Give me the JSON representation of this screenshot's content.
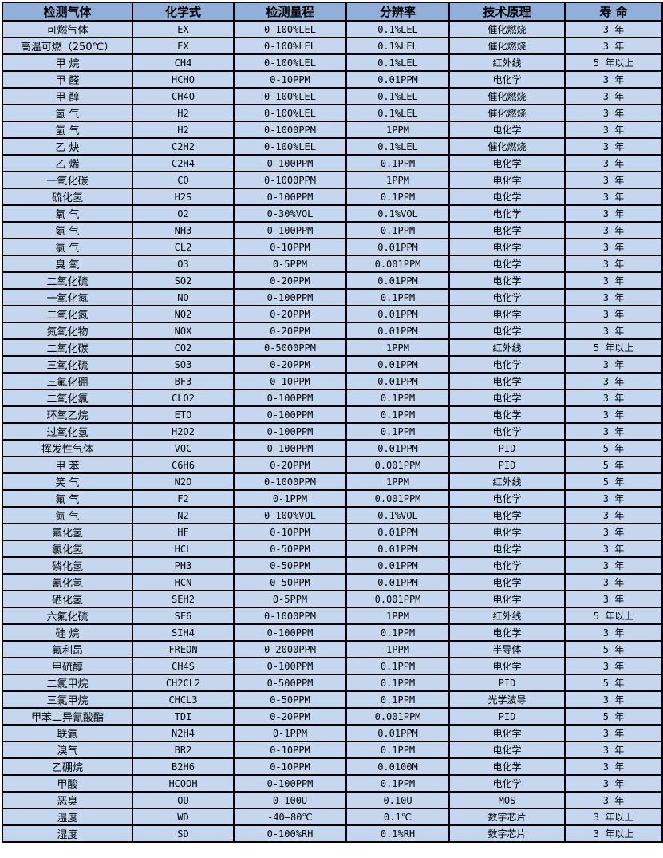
{
  "colors": {
    "header_bg": "#90AFD9",
    "row_bg": "#C4D7EE",
    "grid_border": "#000000",
    "text": "#000000",
    "page_bg": "#FFFFFF"
  },
  "table": {
    "columns": [
      {
        "label": "检测气体"
      },
      {
        "label": "化学式"
      },
      {
        "label": "检测量程"
      },
      {
        "label": "分辨率"
      },
      {
        "label": "技术原理"
      },
      {
        "label": "寿 命"
      }
    ],
    "rows": [
      [
        "可燃气体",
        "EX",
        "0-100%LEL",
        "0.1%LEL",
        "催化燃烧",
        "3 年"
      ],
      [
        "高温可燃（250℃）",
        "EX",
        "0-100%LEL",
        "0.1%LEL",
        "催化燃烧",
        "3 年"
      ],
      [
        "甲 烷",
        "CH4",
        "0-100%LEL",
        "0.1%LEL",
        "红外线",
        "5 年以上"
      ],
      [
        "甲 醛",
        "HCHO",
        "0-10PPM",
        "0.01PPM",
        "电化学",
        "3 年"
      ],
      [
        "甲 醇",
        "CH4O",
        "0-100%LEL",
        "0.1%LEL",
        "催化燃烧",
        "3 年"
      ],
      [
        "氢 气",
        "H2",
        "0-100%LEL",
        "0.1%LEL",
        "催化燃烧",
        "3 年"
      ],
      [
        "氢 气",
        "H2",
        "0-1000PPM",
        "1PPM",
        "电化学",
        "3 年"
      ],
      [
        "乙 炔",
        "C2H2",
        "0-100%LEL",
        "0.1%LEL",
        "催化燃烧",
        "3 年"
      ],
      [
        "乙 烯",
        "C2H4",
        "0-100PPM",
        "0.1PPM",
        "电化学",
        "3 年"
      ],
      [
        "一氧化碳",
        "CO",
        "0-1000PPM",
        "1PPM",
        "电化学",
        "3 年"
      ],
      [
        "硫化氢",
        "H2S",
        "0-100PPM",
        "0.1PPM",
        "电化学",
        "3 年"
      ],
      [
        "氧 气",
        "O2",
        "0-30%VOL",
        "0.1%VOL",
        "电化学",
        "3 年"
      ],
      [
        "氨 气",
        "NH3",
        "0-100PPM",
        "0.1PPM",
        "电化学",
        "3 年"
      ],
      [
        "氯 气",
        "CL2",
        "0-10PPM",
        "0.01PPM",
        "电化学",
        "3 年"
      ],
      [
        "臭 氧",
        "O3",
        "0-5PPM",
        "0.001PPM",
        "电化学",
        "3 年"
      ],
      [
        "二氧化硫",
        "SO2",
        "0-20PPM",
        "0.01PPM",
        "电化学",
        "3 年"
      ],
      [
        "一氧化氮",
        "NO",
        "0-100PPM",
        "0.1PPM",
        "电化学",
        "3 年"
      ],
      [
        "二氧化氮",
        "NO2",
        "0-20PPM",
        "0.01PPM",
        "电化学",
        "3 年"
      ],
      [
        "氮氧化物",
        "NOX",
        "0-20PPM",
        "0.01PPM",
        "电化学",
        "3 年"
      ],
      [
        "二氧化碳",
        "CO2",
        "0-5000PPM",
        "1PPM",
        "红外线",
        "5 年以上"
      ],
      [
        "三氧化硫",
        "SO3",
        "0-20PPM",
        "0.01PPM",
        "电化学",
        "3 年"
      ],
      [
        "三氟化硼",
        "BF3",
        "0-10PPM",
        "0.01PPM",
        "电化学",
        "3 年"
      ],
      [
        "二氧化氯",
        "CLO2",
        "0-100PPM",
        "0.1PPM",
        "电化学",
        "3 年"
      ],
      [
        "环氧乙烷",
        "ETO",
        "0-100PPM",
        "0.1PPM",
        "电化学",
        "3 年"
      ],
      [
        "过氧化氢",
        "H2O2",
        "0-100PPM",
        "0.1PPM",
        "电化学",
        "3 年"
      ],
      [
        "挥发性气体",
        "VOC",
        "0-100PPM",
        "0.01PPM",
        "PID",
        "5 年"
      ],
      [
        "甲 苯",
        "C6H6",
        "0-20PPM",
        "0.001PPM",
        "PID",
        "5 年"
      ],
      [
        "笑 气",
        "N2O",
        "0-1000PPM",
        "1PPM",
        "红外线",
        "5 年"
      ],
      [
        "氟 气",
        "F2",
        "0-1PPM",
        "0.001PPM",
        "电化学",
        "3 年"
      ],
      [
        "氮 气",
        "N2",
        "0-100%VOL",
        "0.1%VOL",
        "电化学",
        "3 年"
      ],
      [
        "氟化氢",
        "HF",
        "0-10PPM",
        "0.01PPM",
        "电化学",
        "3 年"
      ],
      [
        "氯化氢",
        "HCL",
        "0-50PPM",
        "0.01PPM",
        "电化学",
        "3 年"
      ],
      [
        "磷化氢",
        "PH3",
        "0-50PPM",
        "0.01PPM",
        "电化学",
        "3 年"
      ],
      [
        "氰化氢",
        "HCN",
        "0-50PPM",
        "0.01PPM",
        "电化学",
        "3 年"
      ],
      [
        "硒化氢",
        "SEH2",
        "0-5PPM",
        "0.001PPM",
        "电化学",
        "3 年"
      ],
      [
        "六氟化硫",
        "SF6",
        "0-1000PPM",
        "1PPM",
        "红外线",
        "5 年以上"
      ],
      [
        "硅 烷",
        "SIH4",
        "0-100PPM",
        "0.1PPM",
        "电化学",
        "3 年"
      ],
      [
        "氟利昂",
        "FREON",
        "0-2000PPM",
        "1PPM",
        "半导体",
        "5 年"
      ],
      [
        "甲硫醇",
        "CH4S",
        "0-100PPM",
        "0.1PPM",
        "电化学",
        "3 年"
      ],
      [
        "二氯甲烷",
        "CH2CL2",
        "0-500PPM",
        "0.1PPM",
        "PID",
        "5 年"
      ],
      [
        "三氯甲烷",
        "CHCL3",
        "0-50PPM",
        "0.1PPM",
        "光学波导",
        "3 年"
      ],
      [
        "甲苯二异氰酸酯",
        "TDI",
        "0-20PPM",
        "0.001PPM",
        "PID",
        "5 年"
      ],
      [
        "联氨",
        "N2H4",
        "0-1PPM",
        "0.01PPM",
        "电化学",
        "3 年"
      ],
      [
        "溴气",
        "BR2",
        "0-10PPM",
        "0.1PPM",
        "电化学",
        "3 年"
      ],
      [
        "乙硼烷",
        "B2H6",
        "0-10PPM",
        "0.0100M",
        "电化学",
        "3 年"
      ],
      [
        "甲酸",
        "HCOOH",
        "0-100PPM",
        "0.1PPM",
        "电化学",
        "3 年"
      ],
      [
        "恶臭",
        "OU",
        "0-100U",
        "0.10U",
        "MOS",
        "3 年"
      ],
      [
        "温度",
        "WD",
        "-40—80℃",
        "0.1℃",
        "数字芯片",
        "3 年以上"
      ],
      [
        "湿度",
        "SD",
        "0-100%RH",
        "0.1%RH",
        "数字芯片",
        "3 年以上"
      ]
    ]
  }
}
